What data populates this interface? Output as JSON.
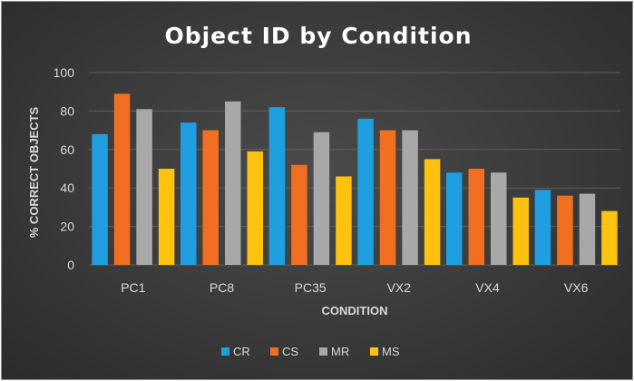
{
  "chart_data": {
    "type": "bar",
    "title": "Object ID by Condition",
    "xlabel": "CONDITION",
    "ylabel": "% CORRECT OBJECTS",
    "ylim": [
      0,
      100
    ],
    "yticks": [
      0,
      20,
      40,
      60,
      80,
      100
    ],
    "grid": true,
    "legend_position": "bottom",
    "categories": [
      "PC1",
      "PC8",
      "PC35",
      "VX2",
      "VX4",
      "VX6"
    ],
    "series": [
      {
        "name": "CR",
        "color": "#1f9fe0",
        "values": [
          68,
          74,
          82,
          76,
          48,
          39
        ]
      },
      {
        "name": "CS",
        "color": "#f26f22",
        "values": [
          89,
          70,
          52,
          70,
          50,
          36
        ]
      },
      {
        "name": "MR",
        "color": "#a8a8a8",
        "values": [
          81,
          85,
          69,
          70,
          48,
          37
        ]
      },
      {
        "name": "MS",
        "color": "#ffc20e",
        "values": [
          50,
          59,
          46,
          55,
          35,
          28
        ]
      }
    ]
  }
}
